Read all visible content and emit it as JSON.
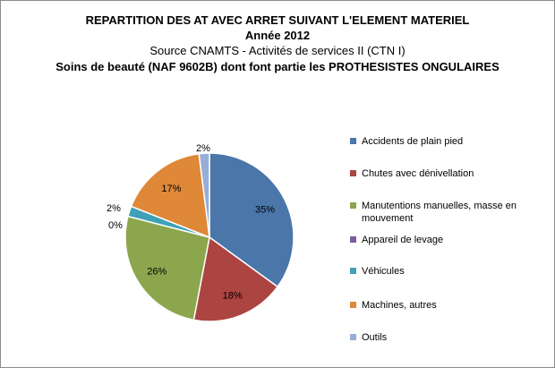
{
  "title_lines": [
    "REPARTITION DES AT AVEC ARRET SUIVANT L'ELEMENT MATERIEL",
    "Année 2012",
    "Source CNAMTS -  Activités de services II (CTN I)",
    "Soins de beauté (NAF 9602B)  dont font partie les PROTHESISTES ONGULAIRES"
  ],
  "chart_data": {
    "type": "pie",
    "title": "REPARTITION DES AT AVEC ARRET SUIVANT L'ELEMENT MATERIEL",
    "categories": [
      "Accidents de plain pied",
      "Chutes avec dénivellation",
      "Manutentions manuelles, masse en mouvement",
      "Appareil de levage",
      "Véhicules",
      "Machines, autres",
      "Outils"
    ],
    "values": [
      35,
      18,
      26,
      0,
      2,
      17,
      2
    ],
    "labels": [
      "35%",
      "18%",
      "26%",
      "0%",
      "2%",
      "17%",
      "2%"
    ],
    "colors": [
      "#4a76aa",
      "#ac4441",
      "#8ca64e",
      "#7a5f9a",
      "#3ea1b8",
      "#de8838",
      "#98aed6"
    ],
    "legend_position": "right"
  }
}
